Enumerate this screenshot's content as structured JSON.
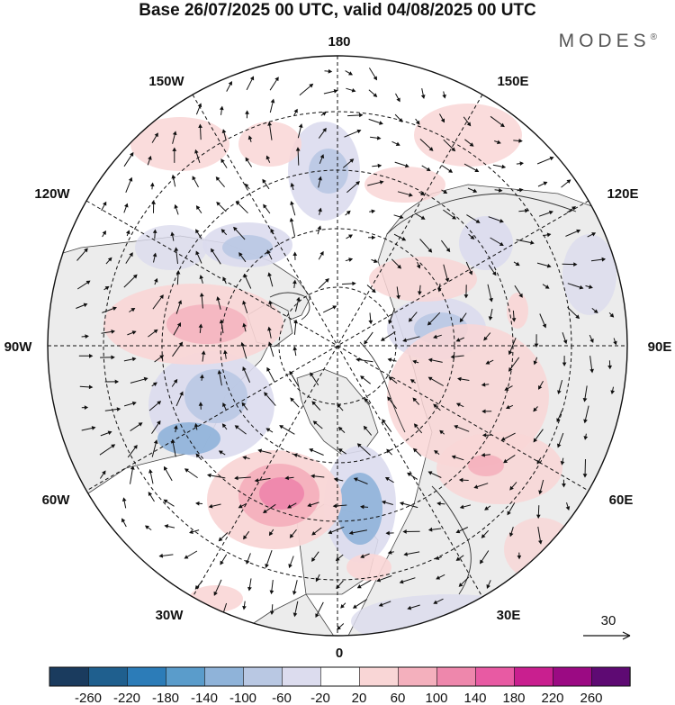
{
  "title": "Base 26/07/2025 00 UTC, valid 04/08/2025 00 UTC",
  "brand": "MODES",
  "brand_mark": "®",
  "longitude_labels": {
    "lon_180": "180",
    "lon_150E": "150E",
    "lon_120E": "120E",
    "lon_90E": "90E",
    "lon_60E": "60E",
    "lon_30E": "30E",
    "lon_0": "0",
    "lon_30W": "30W",
    "lon_60W": "60W",
    "lon_90W": "90W",
    "lon_120W": "120W",
    "lon_150W": "150W"
  },
  "reference_vector_label": "30",
  "colorbar": {
    "colors": [
      "#1a3b5e",
      "#1f5f8e",
      "#2c7cb8",
      "#5a9ccb",
      "#8fb3d9",
      "#b9c8e3",
      "#dcdcee",
      "#ffffff",
      "#f9d6d6",
      "#f4b0bd",
      "#ee87ac",
      "#e85aa3",
      "#c91f8f",
      "#9b0a83",
      "#5e0a73"
    ],
    "labels": [
      "-260",
      "-220",
      "-180",
      "-140",
      "-100",
      "-60",
      "-20",
      "20",
      "60",
      "100",
      "140",
      "180",
      "220",
      "260"
    ]
  },
  "anomaly_features": [
    {
      "name": "north-atlantic-positive-anomaly",
      "value": 150
    },
    {
      "name": "canada-east-negative-anomaly",
      "value": -120
    },
    {
      "name": "alaska-negative-anomaly",
      "value": -100
    },
    {
      "name": "scandinavia-negative-anomaly",
      "value": -140
    },
    {
      "name": "siberia-positive-anomaly",
      "value": 60
    },
    {
      "name": "north-america-positive-anomaly",
      "value": 80
    }
  ]
}
